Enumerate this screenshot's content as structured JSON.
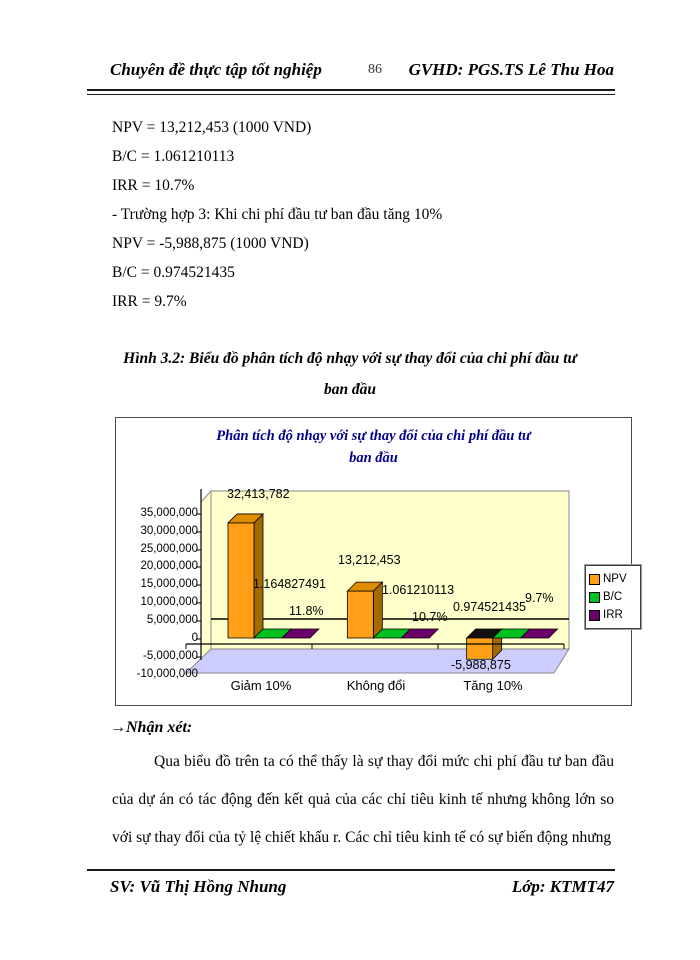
{
  "header": {
    "left": "Chuyên đề thực tập tốt nghiệp",
    "page_number": "86",
    "right": "GVHD: PGS.TS Lê Thu Hoa"
  },
  "body_lines": [
    "NPV = 13,212,453 (1000 VND)",
    "B/C = 1.061210113",
    "IRR = 10.7%",
    "- Trường hợp 3: Khi chi phí đầu tư ban đầu tăng 10%",
    "NPV = -5,988,875 (1000 VND)",
    "B/C = 0.974521435",
    "IRR = 9.7%"
  ],
  "figure_caption": {
    "line1": "Hình 3.2: Biểu đồ phân tích độ nhạy với sự thay đổi của chi phí đầu tư",
    "line2": "ban đầu"
  },
  "chart": {
    "title_line1": "Phân tích độ nhạy với sự thay đổi của chi phí đầu tư",
    "title_line2": "ban đầu",
    "y_ticks": [
      "35,000,000",
      "30,000,000",
      "25,000,000",
      "20,000,000",
      "15,000,000",
      "10,000,000",
      "5,000,000",
      "0",
      "-5,000,000",
      "-10,000,000"
    ],
    "categories": [
      "Giảm 10%",
      "Không đổi",
      "Tăng 10%"
    ],
    "value_labels": {
      "npv": [
        "32,413,782",
        "13,212,453",
        "-5,988,875"
      ],
      "bc": [
        "1.164827491",
        "1.061210113",
        "0.974521435"
      ],
      "irr": [
        "11.8%",
        "10.7%",
        "9.7%"
      ]
    },
    "legend": [
      {
        "label": "NPV",
        "color": "#FFA018"
      },
      {
        "label": "B/C",
        "color": "#00C020"
      },
      {
        "label": "IRR",
        "color": "#6B006B"
      }
    ],
    "colors": {
      "wall": "#FFFFCC",
      "floor": "#CCCCFF",
      "bar_front": "#FFA018",
      "bar_side": "#A36A00",
      "bar_top": "#E08E00",
      "neg_top": "#111111",
      "title": "#00008B"
    }
  },
  "chart_data": {
    "type": "bar",
    "style": "3d-column",
    "title": "Phân tích độ nhạy với sự thay đổi của chi phí đầu tư ban đầu",
    "categories": [
      "Giảm 10%",
      "Không đổi",
      "Tăng 10%"
    ],
    "series": [
      {
        "name": "NPV",
        "values": [
          32413782,
          13212453,
          -5988875
        ]
      },
      {
        "name": "B/C",
        "values": [
          1.164827491,
          1.061210113,
          0.974521435
        ]
      },
      {
        "name": "IRR",
        "values": [
          11.8,
          10.7,
          9.7
        ]
      }
    ],
    "xlabel": "",
    "ylabel": "",
    "ylim": [
      -10000000,
      35000000
    ],
    "y_step": 5000000,
    "grid": false,
    "legend_position": "right"
  },
  "comment": {
    "arrow": "→",
    "heading": "Nhận xét:",
    "paragraph": "Qua biểu đồ trên ta có thể thấy là sự thay đổi mức chi phí đầu tư ban đầu của dự án có tác động đến kết quả của các chỉ tiêu kinh tế nhưng không lớn so với sự thay đổi của tỷ lệ chiết khấu r. Các chỉ tiêu kinh tế có sự biến động nhưng"
  },
  "footer": {
    "left": "SV: Vũ Thị Hồng Nhung",
    "right": "Lớp: KTMT47"
  }
}
